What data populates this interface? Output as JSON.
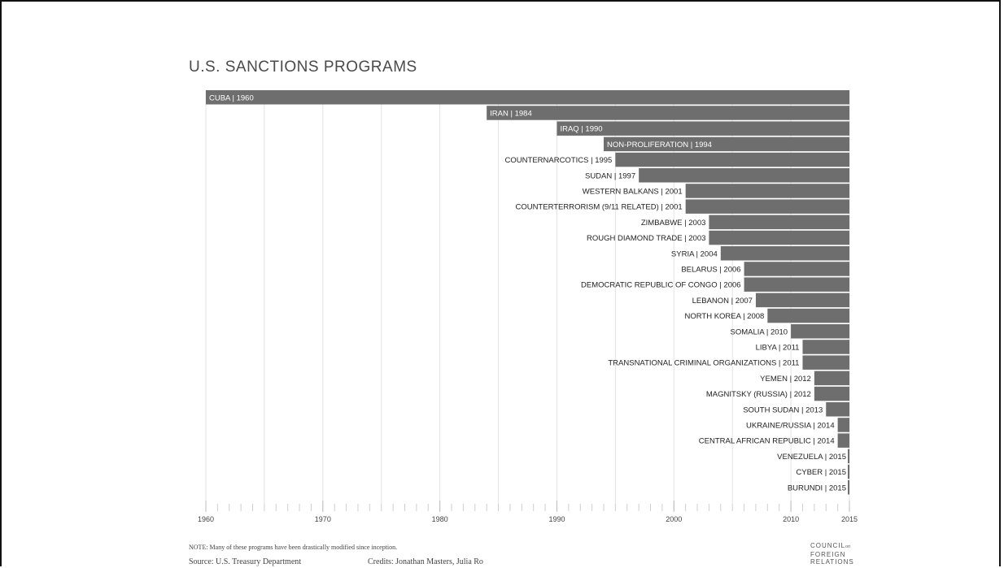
{
  "chart_data": {
    "type": "bar",
    "title": "U.S. SANCTIONS PROGRAMS",
    "orientation": "horizontal",
    "xlim": [
      1960,
      2015
    ],
    "x_ticks": [
      1960,
      1970,
      1980,
      1990,
      2000,
      2010,
      2015
    ],
    "grid": true,
    "bar_color": "#6e6e6e",
    "items": [
      {
        "label": "CUBA | 1960",
        "value": 1960
      },
      {
        "label": "IRAN | 1984",
        "value": 1984
      },
      {
        "label": "IRAQ | 1990",
        "value": 1990
      },
      {
        "label": "NON-PROLIFERATION | 1994",
        "value": 1994
      },
      {
        "label": "COUNTERNARCOTICS | 1995",
        "value": 1995
      },
      {
        "label": "SUDAN | 1997",
        "value": 1997
      },
      {
        "label": "WESTERN BALKANS | 2001",
        "value": 2001
      },
      {
        "label": "COUNTERTERRORISM (9/11 RELATED) | 2001",
        "value": 2001
      },
      {
        "label": "ZIMBABWE | 2003",
        "value": 2003
      },
      {
        "label": "ROUGH DIAMOND TRADE | 2003",
        "value": 2003
      },
      {
        "label": "SYRIA | 2004",
        "value": 2004
      },
      {
        "label": "BELARUS | 2006",
        "value": 2006
      },
      {
        "label": "DEMOCRATIC REPUBLIC OF CONGO | 2006",
        "value": 2006
      },
      {
        "label": "LEBANON | 2007",
        "value": 2007
      },
      {
        "label": "NORTH KOREA | 2008",
        "value": 2008
      },
      {
        "label": "SOMALIA | 2010",
        "value": 2010
      },
      {
        "label": "LIBYA | 2011",
        "value": 2011
      },
      {
        "label": "TRANSNATIONAL CRIMINAL ORGANIZATIONS | 2011",
        "value": 2011
      },
      {
        "label": "YEMEN | 2012",
        "value": 2012
      },
      {
        "label": "MAGNITSKY (RUSSIA) | 2012",
        "value": 2012
      },
      {
        "label": "SOUTH SUDAN | 2013",
        "value": 2013
      },
      {
        "label": "UKRAINE/RUSSIA | 2014",
        "value": 2014
      },
      {
        "label": "CENTRAL AFRICAN REPUBLIC | 2014",
        "value": 2014
      },
      {
        "label": "VENEZUELA | 2015",
        "value": 2015
      },
      {
        "label": "CYBER | 2015",
        "value": 2015
      },
      {
        "label": "BURUNDI | 2015",
        "value": 2015
      }
    ]
  },
  "footer": {
    "note": "NOTE: Many of these programs have been drastically modified since inception.",
    "source": "Source: U.S. Treasury Department",
    "credits": "Credits: Jonathan Masters, Julia Ro",
    "logo_line1": "COUNCIL",
    "logo_on": "on",
    "logo_line2": "FOREIGN",
    "logo_line3": "RELATIONS"
  }
}
